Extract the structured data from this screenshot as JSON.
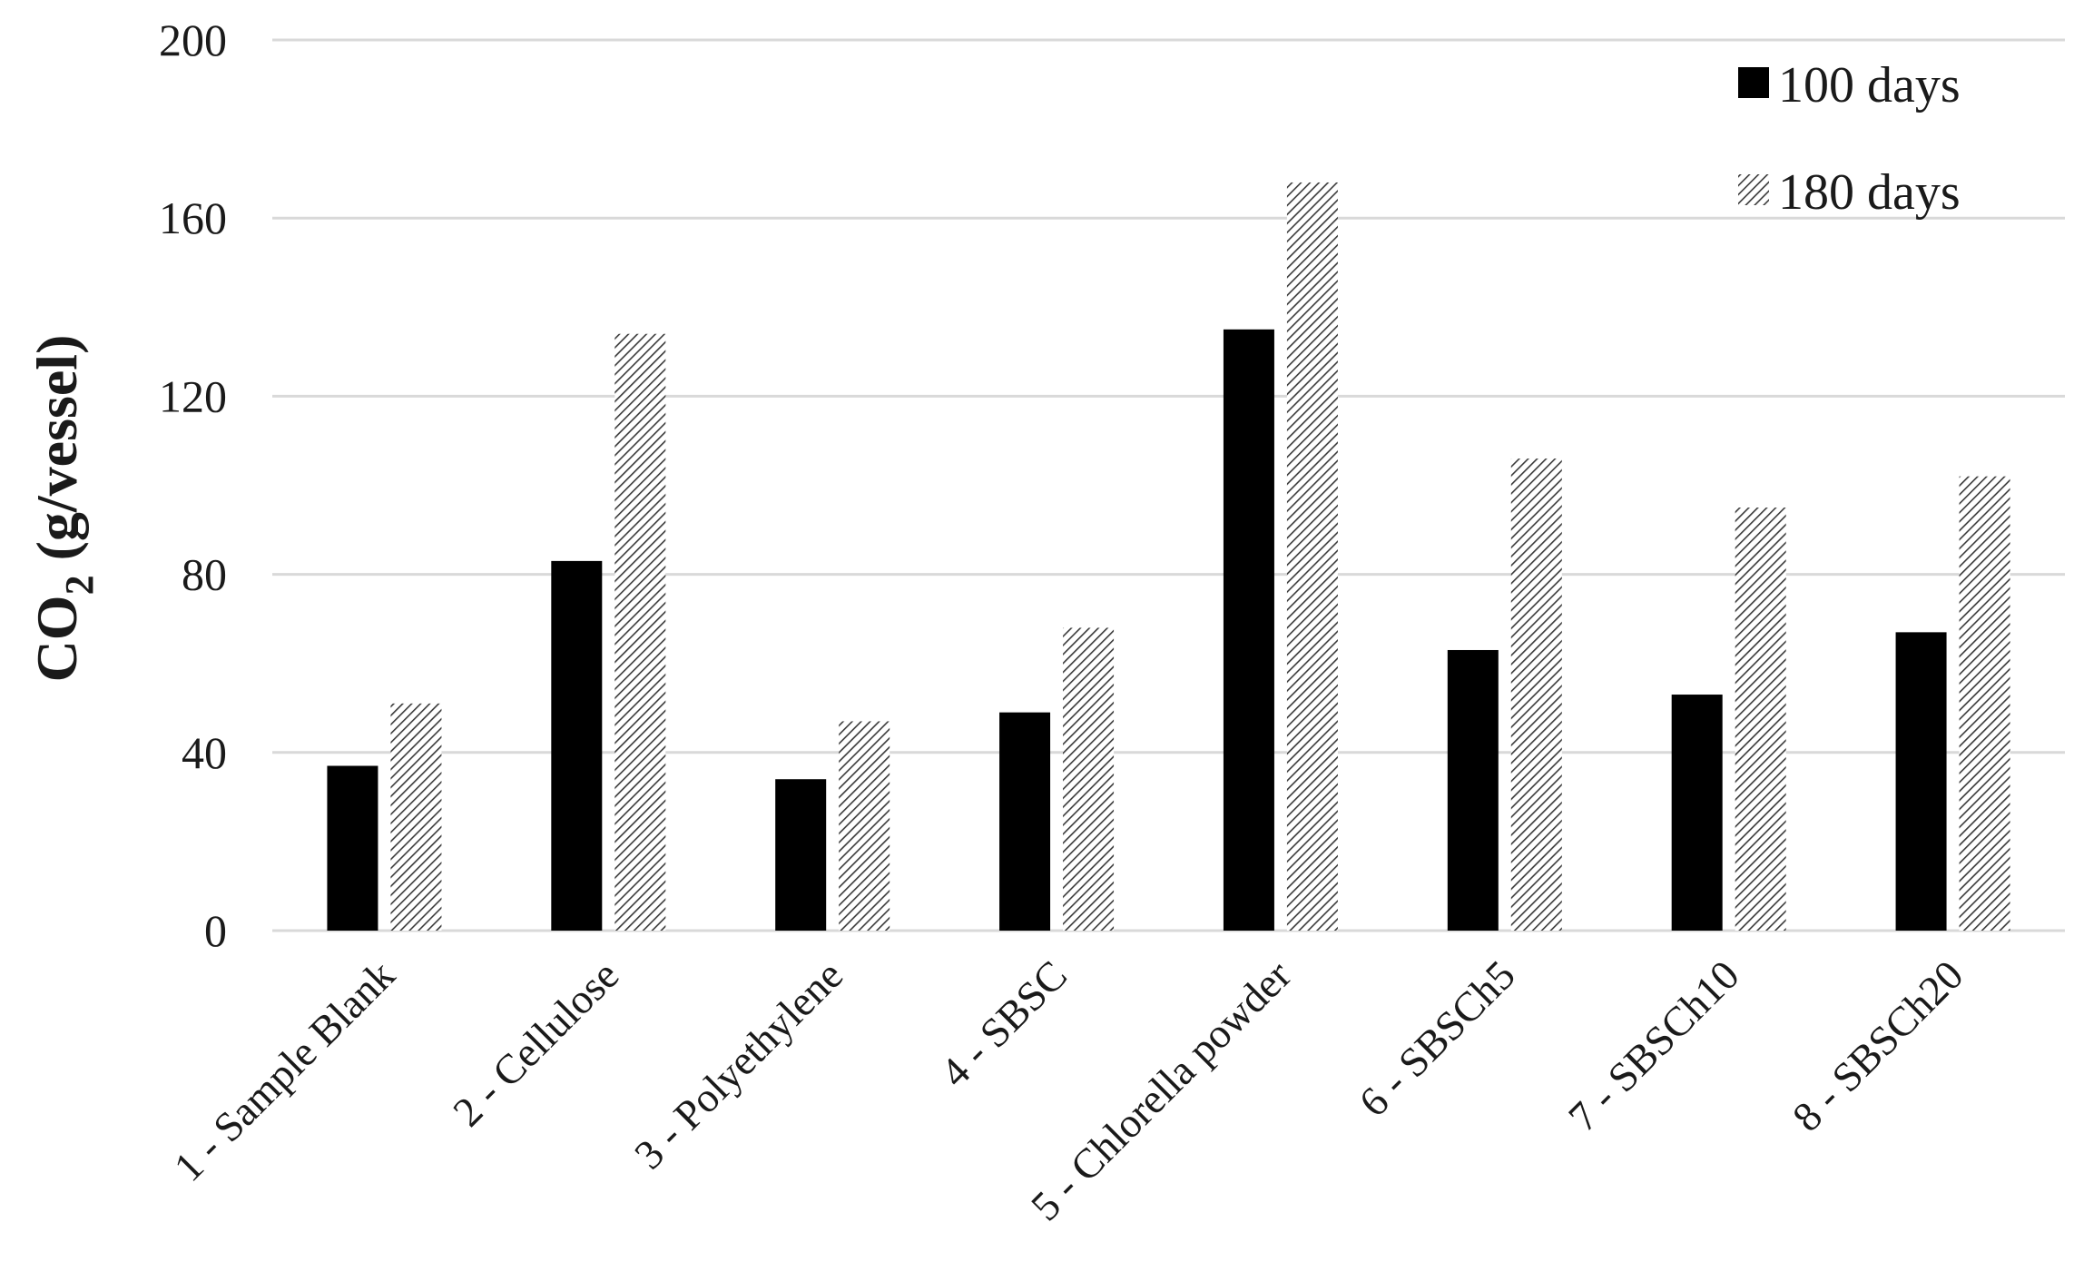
{
  "chart_data": {
    "type": "bar",
    "title": "",
    "xlabel": "",
    "ylabel": "CO2 (g/vessel)",
    "ylabel_main": "CO",
    "ylabel_sub": "2",
    "ylabel_rest": " (g/vessel)",
    "ylim": [
      0,
      200
    ],
    "yticks": [
      0,
      40,
      80,
      120,
      160,
      200
    ],
    "ytick_labels": [
      "0",
      "40",
      "80",
      "120",
      "160",
      "200"
    ],
    "grid": true,
    "legend_position": "top-right",
    "categories": [
      "1 - Sample Blank",
      "2 - Cellulose",
      "3 - Polyethylene",
      "4 - SBSC",
      "5 - Chlorella powder",
      "6 - SBSCh5",
      "7 - SBSCh10",
      "8 - SBSCh20"
    ],
    "series": [
      {
        "name": "100 days",
        "color": "#000000",
        "fill": "solid",
        "values": [
          37,
          83,
          34,
          49,
          135,
          63,
          53,
          67
        ]
      },
      {
        "name": "180 days",
        "color": "#888888",
        "fill": "hatched",
        "values": [
          51,
          134,
          47,
          68,
          168,
          106,
          95,
          102
        ]
      }
    ]
  }
}
